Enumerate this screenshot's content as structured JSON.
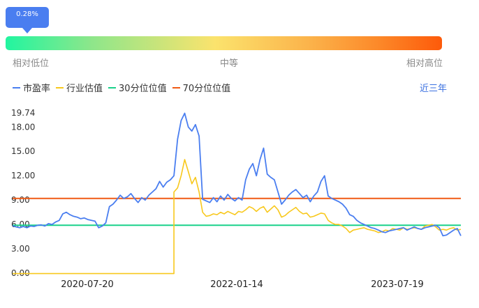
{
  "position_badge": "0.28%",
  "scale": {
    "low": "相对低位",
    "mid": "中等",
    "high": "相对高位"
  },
  "period_button": "近三年",
  "colors": {
    "pe": "#4a7ef0",
    "industry": "#f8c81c",
    "p30": "#19d18a",
    "p70": "#f05a14",
    "badge": "#4a7ef0"
  },
  "chart_data": {
    "type": "line",
    "series": [
      {
        "name": "市盈率",
        "values": [
          5.85,
          5.7,
          5.6,
          5.75,
          5.6,
          5.8,
          5.75,
          5.9,
          5.95,
          5.8,
          6.1,
          6.0,
          6.3,
          6.5,
          7.3,
          7.5,
          7.2,
          7.0,
          6.9,
          6.7,
          6.8,
          6.6,
          6.5,
          6.4,
          5.6,
          5.8,
          6.2,
          8.2,
          8.5,
          9.0,
          9.6,
          9.2,
          9.4,
          9.8,
          9.2,
          8.7,
          9.3,
          9.0,
          9.6,
          10.0,
          10.4,
          11.3,
          10.6,
          11.2,
          11.5,
          12.0,
          16.5,
          18.8,
          19.7,
          18.0,
          17.5,
          18.3,
          16.9,
          9.1,
          8.9,
          8.7,
          9.3,
          8.8,
          9.5,
          9.0,
          9.7,
          9.2,
          8.9,
          9.3,
          9.0,
          11.5,
          12.8,
          13.5,
          12.0,
          14.0,
          15.4,
          12.2,
          11.8,
          11.5,
          10.0,
          8.5,
          9.0,
          9.6,
          10.0,
          10.3,
          9.8,
          9.3,
          9.6,
          8.8,
          9.5,
          10.0,
          11.3,
          12.0,
          9.5,
          9.2,
          9.0,
          8.8,
          8.5,
          8.0,
          7.2,
          7.0,
          6.5,
          6.2,
          6.0,
          5.8,
          5.6,
          5.5,
          5.3,
          5.1,
          5.0,
          5.2,
          5.3,
          5.4,
          5.5,
          5.6,
          5.3,
          5.5,
          5.7,
          5.5,
          5.4,
          5.6,
          5.7,
          5.8,
          5.9,
          5.6,
          4.6,
          4.7,
          5.0,
          5.3,
          5.5,
          4.6
        ]
      },
      {
        "name": "行业估值",
        "values": [
          -0.05,
          -0.05,
          -0.05,
          -0.05,
          -0.05,
          -0.05,
          -0.05,
          -0.05,
          -0.05,
          -0.05,
          -0.05,
          -0.05,
          -0.05,
          -0.05,
          -0.05,
          -0.05,
          -0.05,
          -0.05,
          -0.05,
          -0.05,
          -0.05,
          -0.05,
          -0.05,
          -0.05,
          -0.05,
          -0.05,
          -0.05,
          -0.05,
          -0.05,
          -0.05,
          -0.05,
          -0.05,
          -0.05,
          -0.05,
          -0.05,
          -0.05,
          -0.05,
          -0.05,
          -0.05,
          -0.05,
          -0.05,
          -0.05,
          -0.05,
          -0.05,
          -0.05,
          10.0,
          10.5,
          12.0,
          14.0,
          12.5,
          11.0,
          11.8,
          10.0,
          7.5,
          7.0,
          7.1,
          7.3,
          7.2,
          7.5,
          7.3,
          7.6,
          7.4,
          7.2,
          7.6,
          7.5,
          7.8,
          8.2,
          8.0,
          7.6,
          8.0,
          8.2,
          7.5,
          7.9,
          8.3,
          7.8,
          6.9,
          7.1,
          7.5,
          7.8,
          8.1,
          7.6,
          7.3,
          7.4,
          6.9,
          7.0,
          7.2,
          7.4,
          7.3,
          6.5,
          6.2,
          6.0,
          6.0,
          5.8,
          5.5,
          5.0,
          5.3,
          5.4,
          5.5,
          5.6,
          5.4,
          5.3,
          5.2,
          5.0,
          5.1,
          5.3,
          5.2,
          5.5,
          5.4,
          5.3,
          5.6,
          5.4,
          5.5,
          5.6,
          5.5,
          5.4,
          5.8,
          5.9,
          6.0,
          5.7,
          5.3,
          5.4,
          5.3,
          5.5,
          5.6,
          5.3,
          5.4
        ]
      },
      {
        "name": "30分位位值",
        "values": [
          5.9,
          5.9
        ]
      },
      {
        "name": "70分位位值",
        "values": [
          9.2,
          9.2
        ]
      }
    ],
    "y_ticks": [
      "0.00",
      "3.00",
      "6.00",
      "9.00",
      "12.00",
      "15.00",
      "18.00",
      "19.74"
    ],
    "x_ticks": [
      "2020-07-20",
      "2022-01-14",
      "2023-07-19"
    ],
    "ylim": [
      0,
      19.74
    ],
    "legend_position": "top-left",
    "grid": false
  }
}
